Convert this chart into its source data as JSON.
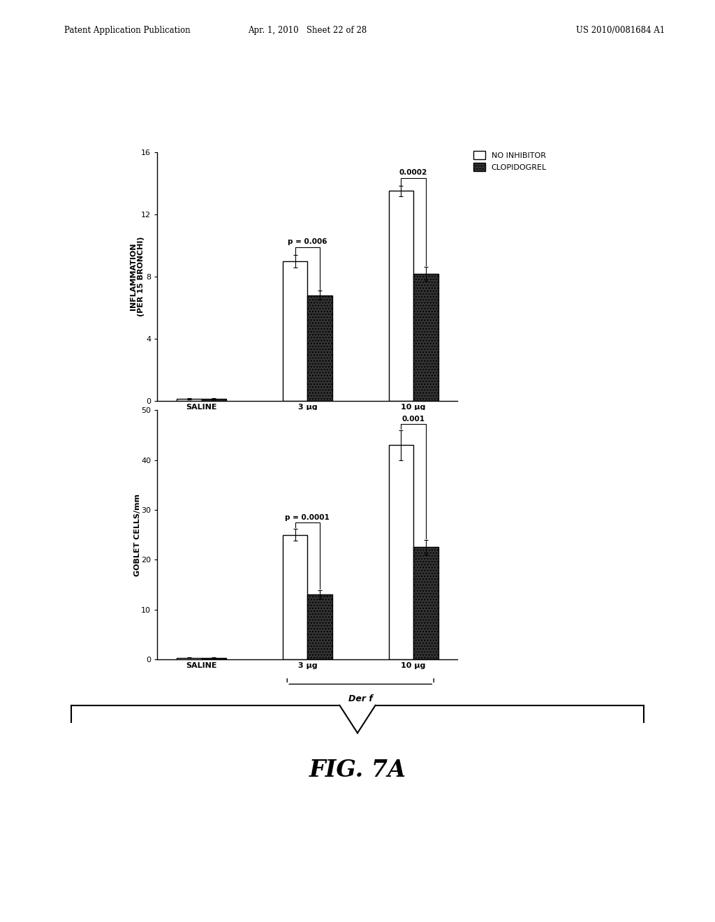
{
  "header_left": "Patent Application Publication",
  "header_mid": "Apr. 1, 2010   Sheet 22 of 28",
  "header_right": "US 2010/0081684 A1",
  "figure_label": "FIG. 7A",
  "top_chart": {
    "ylabel": "INFLAMMATION\n(PER 15 BRONCHI)",
    "ylim": [
      0,
      16
    ],
    "yticks": [
      0,
      4,
      8,
      12,
      16
    ],
    "groups": [
      "SALINE",
      "3 μg",
      "10 μg"
    ],
    "no_inhibitor": [
      0.15,
      9.0,
      13.5
    ],
    "no_inhibitor_err": [
      0.05,
      0.4,
      0.35
    ],
    "clopidogrel": [
      0.15,
      6.8,
      8.2
    ],
    "clopidogrel_err": [
      0.05,
      0.3,
      0.45
    ],
    "pvalue_3ug": "p = 0.006",
    "pvalue_10ug": "0.0002",
    "bracket_label": "Der f"
  },
  "bottom_chart": {
    "ylabel": "GOBLET CELLS/mm",
    "ylim": [
      0,
      50
    ],
    "yticks": [
      0,
      10,
      20,
      30,
      40,
      50
    ],
    "groups": [
      "SALINE",
      "3 μg",
      "10 μg"
    ],
    "no_inhibitor": [
      0.3,
      25.0,
      43.0
    ],
    "no_inhibitor_err": [
      0.1,
      1.2,
      3.0
    ],
    "clopidogrel": [
      0.3,
      13.0,
      22.5
    ],
    "clopidogrel_err": [
      0.1,
      0.8,
      1.5
    ],
    "pvalue_3ug": "p = 0.0001",
    "pvalue_10ug": "0.001",
    "bracket_label": "Der f"
  },
  "legend_labels": [
    "NO INHIBITOR",
    "CLOPIDOGREL"
  ],
  "bar_width": 0.28,
  "no_inhibitor_color": "#ffffff",
  "clopidogrel_color": "#333333",
  "bar_edge_color": "#000000",
  "background_color": "#ffffff",
  "font_color": "#000000",
  "hatch_pattern": "////"
}
